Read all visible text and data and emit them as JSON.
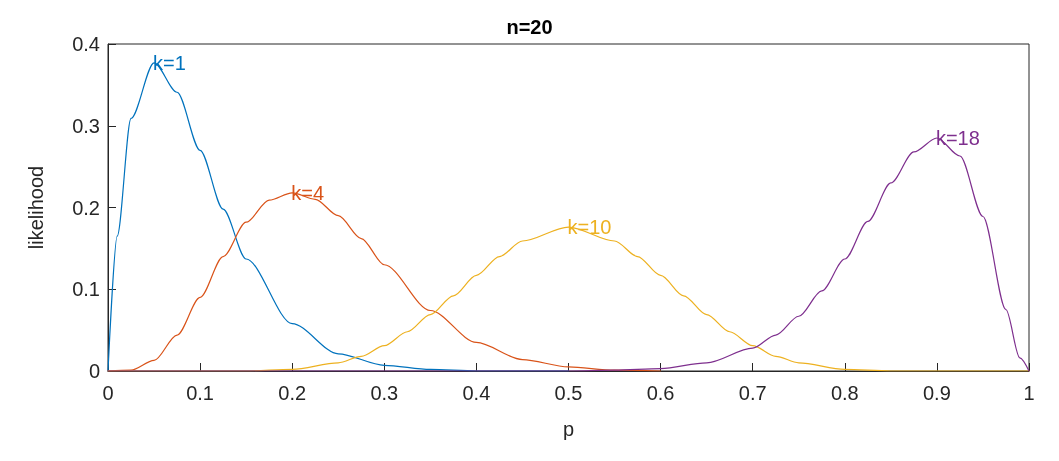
{
  "chart_data": {
    "type": "line",
    "title": "n=20",
    "xlabel": "p",
    "ylabel": "likelihood",
    "xlim": [
      0,
      1
    ],
    "ylim": [
      0,
      0.4
    ],
    "xticks": [
      0,
      0.1,
      0.2,
      0.3,
      0.4,
      0.5,
      0.6,
      0.7,
      0.8,
      0.9,
      1
    ],
    "yticks": [
      0,
      0.1,
      0.2,
      0.3,
      0.4
    ],
    "grid": false,
    "legend": false,
    "marker": "none",
    "line_style": "solid",
    "series": [
      {
        "name": "k=1",
        "color": "#0072bd",
        "x": [
          0,
          0.01,
          0.025,
          0.05,
          0.075,
          0.1,
          0.125,
          0.15,
          0.2,
          0.25,
          0.3,
          0.35,
          0.4,
          0.5
        ],
        "values": [
          0,
          0.165,
          0.309,
          0.377,
          0.341,
          0.27,
          0.198,
          0.137,
          0.058,
          0.021,
          0.007,
          0.002,
          0,
          0
        ]
      },
      {
        "name": "k=4",
        "color": "#d95319",
        "x": [
          0,
          0.025,
          0.05,
          0.075,
          0.1,
          0.125,
          0.15,
          0.175,
          0.2,
          0.225,
          0.25,
          0.275,
          0.3,
          0.35,
          0.4,
          0.45,
          0.5,
          0.55,
          0.6
        ],
        "values": [
          0,
          0.001,
          0.013,
          0.044,
          0.09,
          0.14,
          0.182,
          0.209,
          0.218,
          0.21,
          0.19,
          0.162,
          0.13,
          0.074,
          0.035,
          0.014,
          0.005,
          0.001,
          0
        ]
      },
      {
        "name": "k=10",
        "color": "#edb120",
        "x": [
          0,
          0.1,
          0.15,
          0.2,
          0.25,
          0.275,
          0.3,
          0.325,
          0.35,
          0.375,
          0.4,
          0.425,
          0.45,
          0.5,
          0.55,
          0.575,
          0.6,
          0.625,
          0.65,
          0.675,
          0.7,
          0.725,
          0.75,
          0.8,
          0.85,
          1
        ],
        "values": [
          0,
          0,
          0,
          0.002,
          0.01,
          0.018,
          0.031,
          0.048,
          0.069,
          0.092,
          0.117,
          0.14,
          0.159,
          0.176,
          0.159,
          0.14,
          0.117,
          0.092,
          0.069,
          0.048,
          0.031,
          0.018,
          0.01,
          0.002,
          0,
          0
        ]
      },
      {
        "name": "k=18",
        "color": "#7e2f8e",
        "x": [
          0,
          0.5,
          0.55,
          0.6,
          0.65,
          0.7,
          0.725,
          0.75,
          0.775,
          0.8,
          0.825,
          0.85,
          0.875,
          0.9,
          0.925,
          0.95,
          0.975,
          0.99,
          1
        ],
        "values": [
          0,
          0,
          0.001,
          0.003,
          0.01,
          0.028,
          0.044,
          0.067,
          0.098,
          0.137,
          0.183,
          0.23,
          0.268,
          0.285,
          0.263,
          0.189,
          0.075,
          0.016,
          0
        ]
      }
    ]
  }
}
